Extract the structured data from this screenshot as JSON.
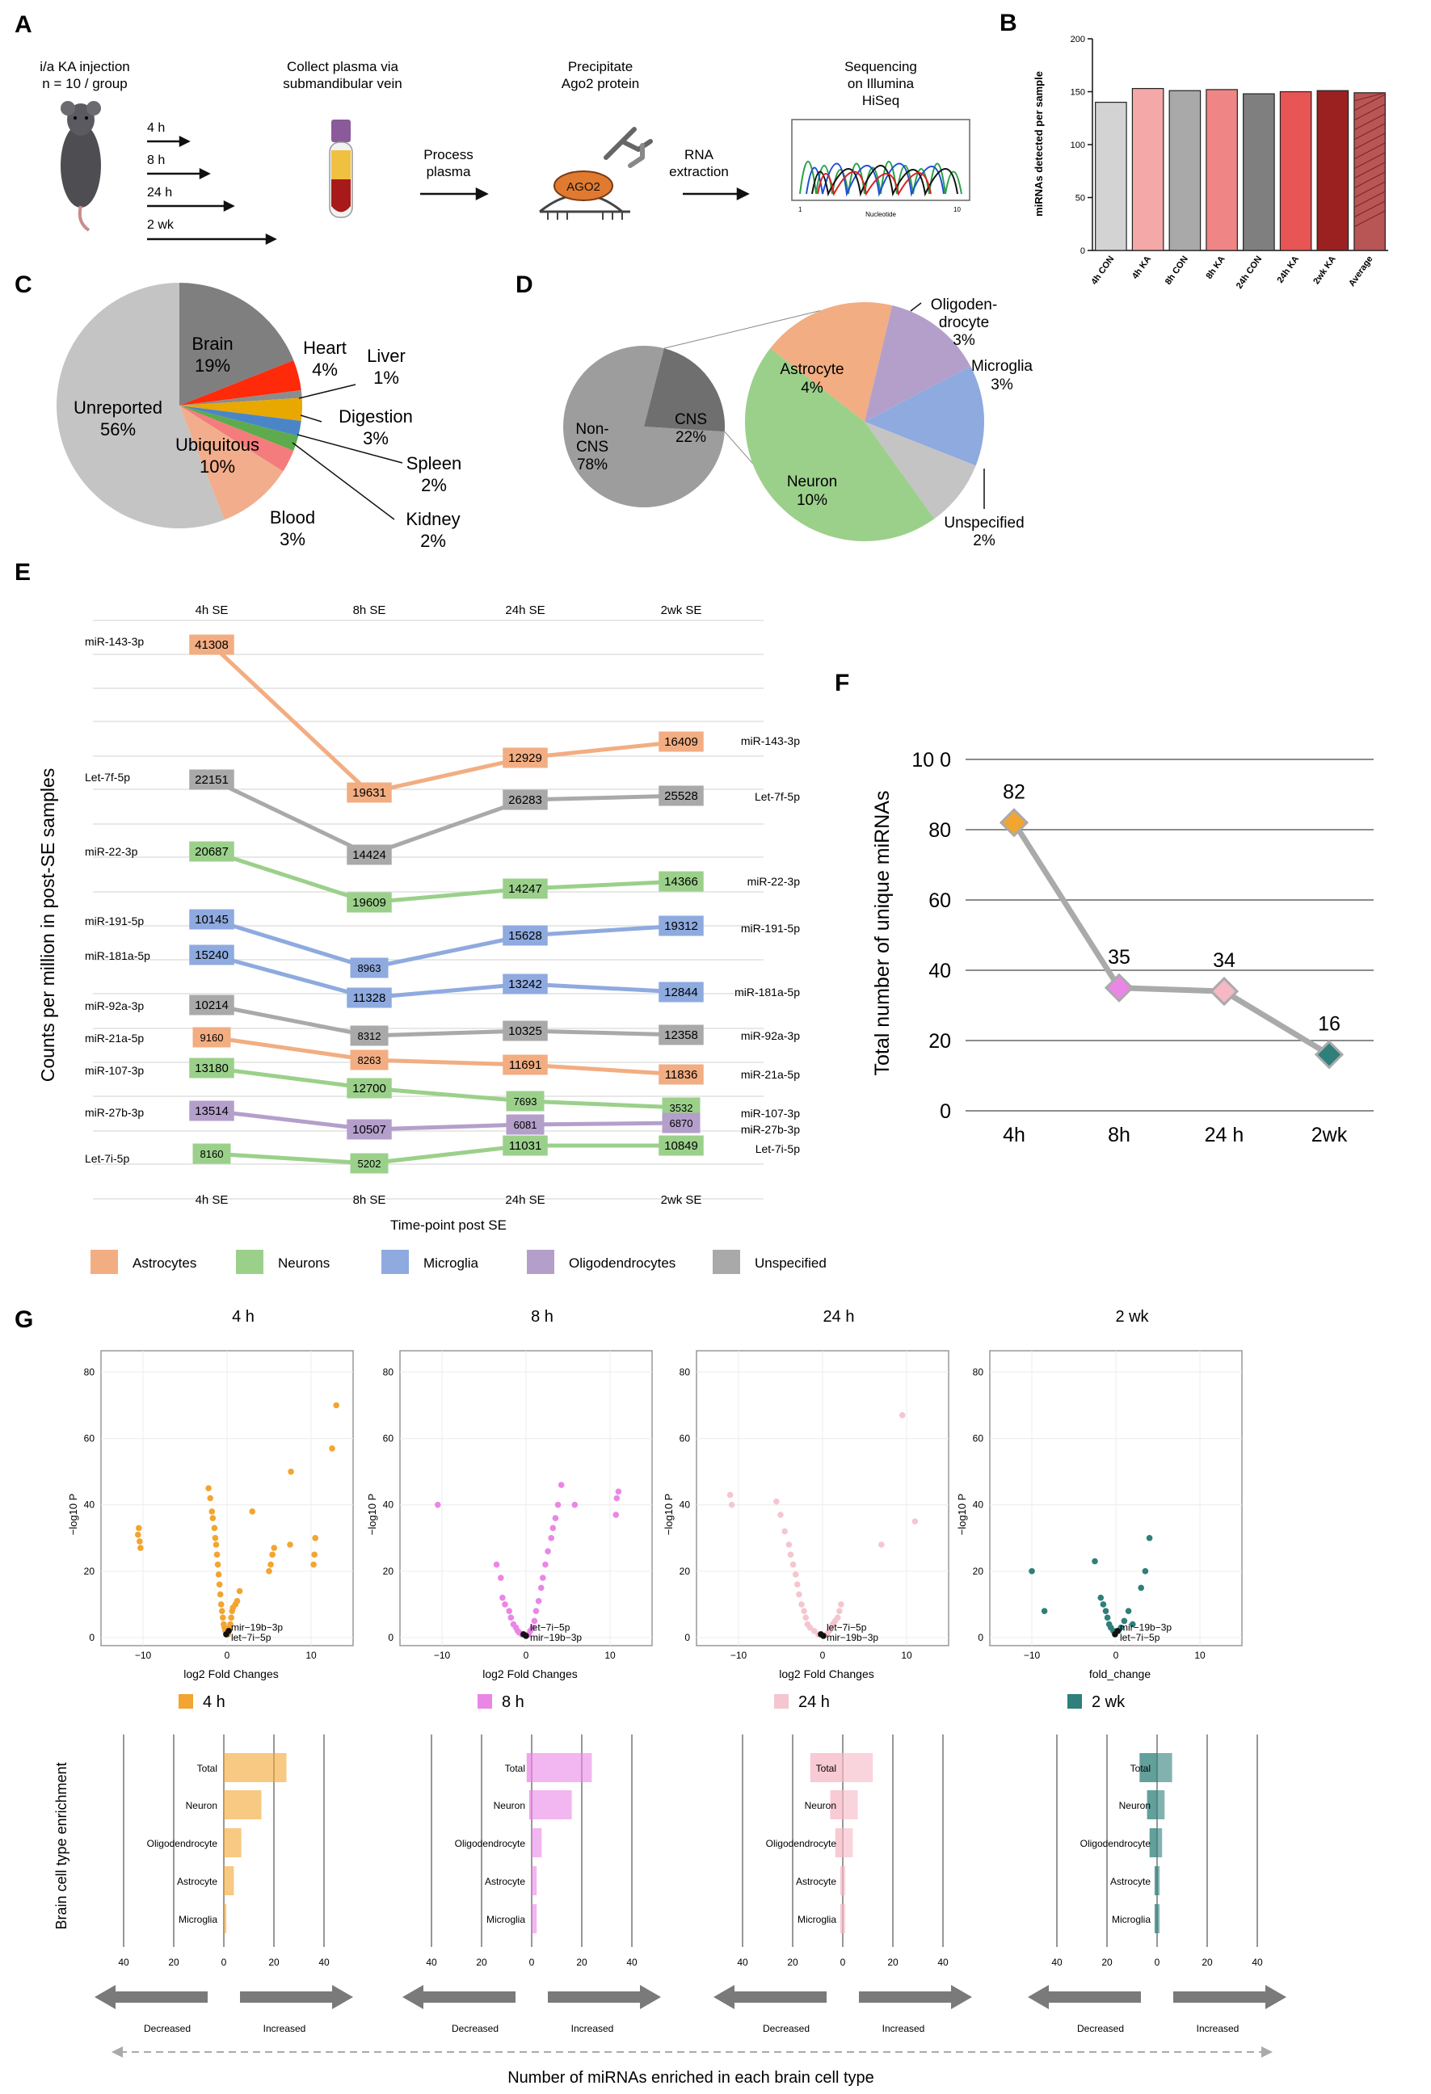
{
  "panel_labels": {
    "a": "A",
    "b": "B",
    "c": "C",
    "d": "D",
    "e": "E",
    "f": "F",
    "g": "G"
  },
  "panel_a": {
    "step1": [
      "i/a KA injection",
      "n = 10 / group"
    ],
    "timepoints": [
      "4 h",
      "8 h",
      "24 h",
      "2 wk"
    ],
    "step2": [
      "Collect plasma via",
      "submandibular vein"
    ],
    "step3": [
      "Process",
      "plasma"
    ],
    "step4": [
      "Precipitate",
      "Ago2 protein"
    ],
    "ago2_label": "AGO2",
    "step5": [
      "RNA",
      "extraction"
    ],
    "step6": [
      "Sequencing",
      "on Illumina",
      "HiSeq"
    ],
    "trace_tick_left": "1",
    "trace_tick_right": "10",
    "trace_axis_label": "Nucleotide"
  },
  "colors": {
    "astrocyte": "#f2ad82",
    "neuron": "#9bd08a",
    "microglia": "#8eaadf",
    "oligo": "#b49fcb",
    "unspecified": "#a9a9a9",
    "orange": "#f2a530",
    "pink": "#ea86e6",
    "lightpink": "#f5c6cf",
    "teal": "#2f7f7a"
  },
  "chart_data": [
    {
      "id": "B",
      "type": "bar",
      "ylabel": "miRNAs detected per sample",
      "ylim": [
        0,
        200
      ],
      "yticks": [
        0,
        50,
        100,
        150,
        200
      ],
      "categories": [
        "4h CON",
        "4h KA",
        "8h CON",
        "8h KA",
        "24h CON",
        "24h KA",
        "2wk KA",
        "Average"
      ],
      "values": [
        140,
        153,
        151,
        152,
        148,
        150,
        151,
        149
      ],
      "bar_colors": [
        "#d3d3d3",
        "#f4a8a8",
        "#a9a9aa",
        "#f08585",
        "#7f7f7f",
        "#e85555",
        "#9b2020",
        "#b85555"
      ]
    },
    {
      "id": "C",
      "type": "pie",
      "slices": [
        {
          "name": "Brain",
          "value": 19,
          "label": "19%",
          "color": "#7f7f7f"
        },
        {
          "name": "Heart",
          "value": 4,
          "label": "4%",
          "color": "#ff2a0a"
        },
        {
          "name": "Liver",
          "value": 1,
          "label": "1%",
          "color": "#8c8c8c"
        },
        {
          "name": "Digestion",
          "value": 3,
          "label": "3%",
          "color": "#e8a800"
        },
        {
          "name": "Spleen",
          "value": 2,
          "label": "2%",
          "color": "#4a86c7"
        },
        {
          "name": "Kidney",
          "value": 2,
          "label": "2%",
          "color": "#5dab4c"
        },
        {
          "name": "Blood",
          "value": 3,
          "label": "3%",
          "color": "#f47c7c"
        },
        {
          "name": "Ubiquitous",
          "value": 10,
          "label": "10%",
          "color": "#f2ad8c"
        },
        {
          "name": "Unreported",
          "value": 56,
          "label": "56%",
          "color": "#c4c4c4"
        }
      ]
    },
    {
      "id": "D",
      "type": "pie",
      "small_pie": [
        {
          "name": "Non-CNS",
          "lines": [
            "Non-",
            "CNS",
            "78%"
          ],
          "value": 78,
          "color": "#9d9d9d"
        },
        {
          "name": "CNS",
          "lines": [
            "CNS",
            "22%"
          ],
          "value": 22,
          "color": "#6f6f6f"
        }
      ],
      "large_pie": [
        {
          "name": "Astrocyte",
          "value": 4,
          "label": "4%",
          "color": "#f2ad82"
        },
        {
          "name": "Oligodendrocyte",
          "value": 3,
          "label": "3%",
          "color": "#b49fcb"
        },
        {
          "name": "Microglia",
          "value": 3,
          "label": "3%",
          "color": "#8eaadf"
        },
        {
          "name": "Unspecified",
          "value": 2,
          "label": "2%",
          "color": "#c4c4c4"
        },
        {
          "name": "Neuron",
          "value": 10,
          "label": "10%",
          "color": "#9bd08a"
        }
      ],
      "oligo_label_lines": [
        "Oligoden-",
        "drocyte"
      ]
    },
    {
      "id": "E",
      "type": "line",
      "ylabel": "Counts per million in post-SE samples",
      "xlabel": "Time-point post SE",
      "categories": [
        "4h SE",
        "8h SE",
        "24h SE",
        "2wk SE"
      ],
      "series": [
        {
          "name": "miR-143-3p",
          "type": "astrocyte",
          "values": [
            41308,
            19631,
            12929,
            16409
          ]
        },
        {
          "name": "Let-7f-5p",
          "type": "unspecified",
          "values": [
            22151,
            14424,
            26283,
            25528
          ]
        },
        {
          "name": "miR-22-3p",
          "type": "neuron",
          "values": [
            20687,
            19609,
            14247,
            14366
          ]
        },
        {
          "name": "miR-191-5p",
          "type": "microglia",
          "values": [
            10145,
            8963,
            15628,
            19312
          ]
        },
        {
          "name": "miR-181a-5p",
          "type": "microglia",
          "values": [
            15240,
            11328,
            13242,
            12844
          ]
        },
        {
          "name": "miR-92a-3p",
          "type": "unspecified",
          "values": [
            10214,
            8312,
            10325,
            12358
          ]
        },
        {
          "name": "miR-21a-5p",
          "type": "astrocyte",
          "values": [
            9160,
            8263,
            11691,
            11836
          ]
        },
        {
          "name": "miR-107-3p",
          "type": "neuron",
          "values": [
            13180,
            12700,
            7693,
            3532
          ]
        },
        {
          "name": "miR-27b-3p",
          "type": "oligo",
          "values": [
            13514,
            10507,
            6081,
            6870
          ]
        },
        {
          "name": "Let-7i-5p",
          "type": "neuron",
          "values": [
            8160,
            5202,
            11031,
            10849
          ]
        }
      ],
      "legend": [
        {
          "label": "Astrocytes",
          "type": "astrocyte"
        },
        {
          "label": "Neurons",
          "type": "neuron"
        },
        {
          "label": "Microglia",
          "type": "microglia"
        },
        {
          "label": "Oligodendrocytes",
          "type": "oligo"
        },
        {
          "label": "Unspecified",
          "type": "unspecified"
        }
      ]
    },
    {
      "id": "F",
      "type": "line",
      "ylabel": "Total number of unique miRNAs",
      "categories": [
        "4h",
        "8h",
        "24 h",
        "2wk"
      ],
      "values": [
        82,
        35,
        34,
        16
      ],
      "marker_colors": [
        "#f2a530",
        "#ea86e6",
        "#f5b8c4",
        "#2f7f7a"
      ],
      "ylim": [
        0,
        100
      ],
      "yticks": [
        "0",
        "20",
        "40",
        "60",
        "80",
        "10 0"
      ]
    },
    {
      "id": "G-volcano",
      "type": "scatter",
      "ylabel": "−log10 P",
      "xticks": [
        "−10",
        "0",
        "10"
      ],
      "yticks": [
        "0",
        "20",
        "40",
        "60",
        "80"
      ],
      "panels": [
        {
          "title": "4 h",
          "legend": "4 h",
          "color": "#f2a530",
          "xlabel": "log2 Fold Changes",
          "labels": [
            "mir−19b−3p",
            "let−7i−5p"
          ],
          "points": [
            [
              -10.5,
              33
            ],
            [
              -10.6,
              31
            ],
            [
              -10.4,
              29
            ],
            [
              -10.3,
              27
            ],
            [
              -2.2,
              45
            ],
            [
              -2,
              42
            ],
            [
              -1.8,
              38
            ],
            [
              -1.7,
              36
            ],
            [
              -1.5,
              33
            ],
            [
              -1.4,
              30
            ],
            [
              -1.3,
              28
            ],
            [
              -1.2,
              25
            ],
            [
              -1.1,
              22
            ],
            [
              -1,
              19
            ],
            [
              -0.9,
              16
            ],
            [
              -0.8,
              13
            ],
            [
              -0.7,
              10
            ],
            [
              -0.6,
              8
            ],
            [
              -0.5,
              6
            ],
            [
              -0.4,
              4
            ],
            [
              -0.3,
              3
            ],
            [
              -0.2,
              2
            ],
            [
              -0.1,
              1
            ],
            [
              0.1,
              1
            ],
            [
              0.2,
              2
            ],
            [
              0.3,
              3
            ],
            [
              0.4,
              4
            ],
            [
              0.5,
              6
            ],
            [
              0.6,
              8
            ],
            [
              0.7,
              9
            ],
            [
              1,
              10
            ],
            [
              1.2,
              11
            ],
            [
              1.5,
              14
            ],
            [
              3,
              38
            ],
            [
              5,
              20
            ],
            [
              5.2,
              22
            ],
            [
              5.4,
              25
            ],
            [
              5.6,
              27
            ],
            [
              7.5,
              28
            ],
            [
              7.6,
              50
            ],
            [
              10.5,
              30
            ],
            [
              10.4,
              25
            ],
            [
              10.3,
              22
            ],
            [
              12.5,
              57
            ],
            [
              13,
              70
            ]
          ],
          "black": [
            [
              -0.1,
              1
            ],
            [
              0.2,
              2
            ]
          ]
        },
        {
          "title": "8 h",
          "legend": "8 h",
          "color": "#ea86e6",
          "xlabel": "log2 Fold Changes",
          "labels": [
            "let−7i−5p",
            "mir−19b−3p"
          ],
          "points": [
            [
              -10.5,
              40
            ],
            [
              -3.5,
              22
            ],
            [
              -3,
              18
            ],
            [
              -2.8,
              12
            ],
            [
              -2.5,
              10
            ],
            [
              -2,
              8
            ],
            [
              -1.8,
              6
            ],
            [
              -1.5,
              4
            ],
            [
              -1.2,
              3
            ],
            [
              -1,
              2
            ],
            [
              -0.8,
              1.5
            ],
            [
              -0.5,
              1
            ],
            [
              0.3,
              1
            ],
            [
              0.5,
              2
            ],
            [
              0.8,
              3
            ],
            [
              1,
              5
            ],
            [
              1.2,
              8
            ],
            [
              1.5,
              11
            ],
            [
              1.8,
              15
            ],
            [
              2,
              18
            ],
            [
              2.3,
              22
            ],
            [
              2.6,
              26
            ],
            [
              3,
              30
            ],
            [
              3.2,
              33
            ],
            [
              3.5,
              36
            ],
            [
              3.8,
              40
            ],
            [
              4.2,
              46
            ],
            [
              5.8,
              40
            ],
            [
              10.8,
              42
            ],
            [
              11,
              44
            ],
            [
              10.7,
              37
            ]
          ],
          "black": [
            [
              -0.3,
              1
            ],
            [
              0,
              0.5
            ]
          ]
        },
        {
          "title": "24 h",
          "legend": "24 h",
          "color": "#f5c6cf",
          "xlabel": "log2 Fold Changes",
          "labels": [
            "let−7i−5p",
            "mir−19b−3p"
          ],
          "points": [
            [
              -11,
              43
            ],
            [
              -10.8,
              40
            ],
            [
              -5.5,
              41
            ],
            [
              -5,
              37
            ],
            [
              -4.5,
              32
            ],
            [
              -4,
              28
            ],
            [
              -3.8,
              25
            ],
            [
              -3.5,
              22
            ],
            [
              -3.2,
              19
            ],
            [
              -3,
              16
            ],
            [
              -2.8,
              13
            ],
            [
              -2.5,
              10
            ],
            [
              -2.2,
              8
            ],
            [
              -2,
              6
            ],
            [
              -1.8,
              4
            ],
            [
              -1.5,
              3
            ],
            [
              -1,
              2
            ],
            [
              -0.5,
              1
            ],
            [
              0.5,
              1
            ],
            [
              0.8,
              2
            ],
            [
              1,
              3
            ],
            [
              1.2,
              4
            ],
            [
              1.5,
              5
            ],
            [
              1.8,
              6
            ],
            [
              2,
              8
            ],
            [
              2.2,
              10
            ],
            [
              7,
              28
            ],
            [
              9.5,
              67
            ],
            [
              11,
              35
            ]
          ],
          "black": [
            [
              -0.2,
              1
            ],
            [
              0.1,
              0.5
            ]
          ]
        },
        {
          "title": "2 wk",
          "legend": "2 wk",
          "color": "#2f7f7a",
          "xlabel": "fold_change",
          "labels": [
            "mir−19b−3p",
            "let−7i−5p"
          ],
          "points": [
            [
              -10,
              20
            ],
            [
              -8.5,
              8
            ],
            [
              -2.5,
              23
            ],
            [
              -1.8,
              12
            ],
            [
              -1.5,
              10
            ],
            [
              -1.2,
              8
            ],
            [
              -1,
              6
            ],
            [
              -0.8,
              4
            ],
            [
              -0.6,
              3
            ],
            [
              -0.3,
              2
            ],
            [
              0.3,
              2
            ],
            [
              0.6,
              3
            ],
            [
              1,
              5
            ],
            [
              1.5,
              8
            ],
            [
              2,
              4
            ],
            [
              3,
              15
            ],
            [
              3.5,
              20
            ],
            [
              4,
              30
            ]
          ],
          "black": [
            [
              -0.1,
              1
            ],
            [
              0.2,
              2
            ]
          ]
        }
      ]
    },
    {
      "id": "G-bars",
      "type": "bar",
      "ylabel": "Brain cell type enrichment",
      "xlabel": "Number of miRNAs enriched in each brain cell type",
      "categories": [
        "Total",
        "Neuron",
        "Oligodendrocyte",
        "Astrocyte",
        "Microglia"
      ],
      "xticks": [
        "40",
        "20",
        "0",
        "20",
        "40"
      ],
      "decreased_label": "Decreased",
      "increased_label": "Increased",
      "panels": [
        {
          "color": "#f2a530",
          "decreased": [
            0,
            0,
            0,
            0,
            0
          ],
          "increased": [
            25,
            15,
            7,
            4,
            1
          ]
        },
        {
          "color": "#ea86e6",
          "decreased": [
            2,
            1,
            0,
            0,
            0
          ],
          "increased": [
            24,
            16,
            4,
            2,
            2
          ]
        },
        {
          "color": "#f5b8c4",
          "decreased": [
            13,
            5,
            3,
            1,
            1
          ],
          "increased": [
            12,
            6,
            4,
            1,
            1
          ]
        },
        {
          "color": "#2f7f7a",
          "decreased": [
            7,
            4,
            3,
            1,
            1
          ],
          "increased": [
            6,
            3,
            2,
            1,
            1
          ]
        }
      ]
    }
  ]
}
